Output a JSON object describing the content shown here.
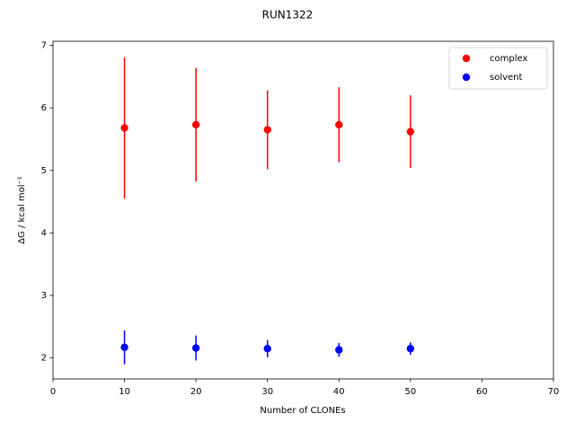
{
  "chart_data": {
    "type": "scatter",
    "title": "RUN1322",
    "x_label": "Number of CLONEs",
    "y_label": "ΔG / kcal mol⁻¹",
    "x": [
      10,
      20,
      30,
      40,
      50
    ],
    "series": [
      {
        "name": "complex",
        "color": "#ff0000",
        "values": [
          5.68,
          5.73,
          5.65,
          5.73,
          5.62
        ],
        "errors": [
          1.13,
          0.91,
          0.63,
          0.6,
          0.58
        ]
      },
      {
        "name": "solvent",
        "color": "#0000ff",
        "values": [
          2.17,
          2.16,
          2.15,
          2.13,
          2.15
        ],
        "errors": [
          0.27,
          0.2,
          0.14,
          0.11,
          0.1
        ]
      }
    ],
    "xlim": [
      0,
      70
    ],
    "xticks": [
      0,
      10,
      20,
      30,
      40,
      50,
      60,
      70
    ],
    "ylim": [
      1.665,
      7.065
    ],
    "yticks": [
      2,
      3,
      4,
      5,
      6,
      7
    ],
    "grid": false,
    "legend": "upper right"
  }
}
